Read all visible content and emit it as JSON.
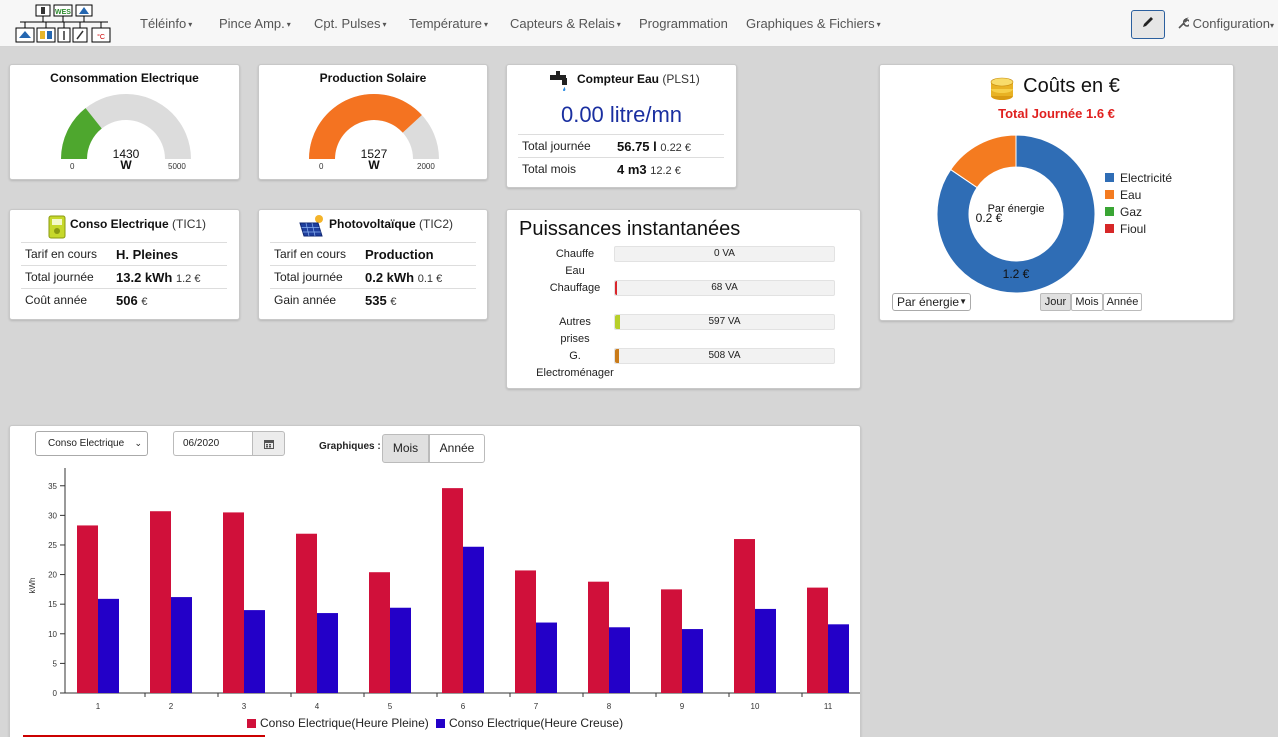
{
  "nav": {
    "logo_text": "WES",
    "logo_temp": "°C",
    "menu": [
      "Téléinfo",
      "Pince Amp.",
      "Cpt. Pulses",
      "Température",
      "Capteurs & Relais",
      "Programmation",
      "Graphiques & Fichiers"
    ],
    "menu_has_caret": [
      true,
      true,
      true,
      true,
      true,
      false,
      true
    ],
    "config": "Configuration"
  },
  "consumption_gauge": {
    "title": "Consommation Electrique",
    "value": "1430",
    "unit": "W",
    "min": "0",
    "max": "5000",
    "fraction": 0.286,
    "color": "#4ea72e"
  },
  "solar_gauge": {
    "title": "Production Solaire",
    "value": "1527",
    "unit": "W",
    "min": "0",
    "max": "2000",
    "fraction": 0.7635,
    "color": "#f47321"
  },
  "water": {
    "title": "Compteur Eau",
    "subtitle": "(PLS1)",
    "flow": "0.00 litre/mn",
    "rows": [
      {
        "label": "Total journée",
        "value": "56.75 l",
        "sub": "0.22 €"
      },
      {
        "label": "Total mois",
        "value": "4 m3",
        "sub": "12.2 €"
      }
    ]
  },
  "tic1": {
    "title": "Conso Electrique",
    "subtitle": "(TIC1)",
    "rows": [
      {
        "label": "Tarif en cours",
        "value": "H. Pleines",
        "sub": ""
      },
      {
        "label": "Total journée",
        "value": "13.2 kWh",
        "sub": "1.2 €"
      },
      {
        "label": "Coût année",
        "value": "506",
        "sub": "€"
      }
    ]
  },
  "tic2": {
    "title": "Photovoltaïque",
    "subtitle": "(TIC2)",
    "rows": [
      {
        "label": "Tarif en cours",
        "value": "Production",
        "sub": ""
      },
      {
        "label": "Total journée",
        "value": "0.2 kWh",
        "sub": "0.1 €"
      },
      {
        "label": "Gain année",
        "value": "535",
        "sub": "€"
      }
    ]
  },
  "power": {
    "title": "Puissances instantanées",
    "items": [
      {
        "label": "Chauffe Eau",
        "value": "0 VA",
        "fraction": 0.0,
        "color": "#c9c9c9"
      },
      {
        "label": "Chauffage",
        "value": "68 VA",
        "fraction": 0.004,
        "color": "#d9252b"
      },
      {
        "label": "Autres prises",
        "value": "597 VA",
        "fraction": 0.025,
        "color": "#b7cf2a"
      },
      {
        "label": "G. Electroménager",
        "value": "508 VA",
        "fraction": 0.02,
        "color": "#c97b1a"
      }
    ]
  },
  "costs": {
    "title": "Coûts en €",
    "total": "Total Journée 1.6 €",
    "center_label": "Par énergie",
    "slices": [
      {
        "name": "Electricité",
        "value": 1.2,
        "label": "1.2 €",
        "color": "#2f6db5"
      },
      {
        "name": "Eau",
        "value": 0.22,
        "label": "0.2 €",
        "color": "#f47b20"
      },
      {
        "name": "Gaz",
        "value": 0,
        "label": "",
        "color": "#3aa534"
      },
      {
        "name": "Fioul",
        "value": 0,
        "label": "",
        "color": "#d62728"
      }
    ],
    "select_value": "Par énergie",
    "period_buttons": [
      "Jour",
      "Mois",
      "Année"
    ],
    "active_period": "Jour"
  },
  "graph_controls": {
    "select_value": "Conso Electrique",
    "date_value": "06/2020",
    "label": "Graphiques :",
    "buttons": [
      "Mois",
      "Année"
    ],
    "active": "Mois"
  },
  "chart_data": {
    "type": "bar",
    "categories": [
      "1",
      "2",
      "3",
      "4",
      "5",
      "6",
      "7",
      "8",
      "9",
      "10",
      "11"
    ],
    "series": [
      {
        "name": "Conso Electrique(Heure Pleine)",
        "color": "#d0103a",
        "values": [
          28.3,
          30.7,
          30.5,
          26.9,
          20.4,
          34.6,
          20.7,
          18.8,
          17.5,
          26.0,
          17.8
        ]
      },
      {
        "name": "Conso Electrique(Heure Creuse)",
        "color": "#2300c8",
        "values": [
          15.9,
          16.2,
          14.0,
          13.5,
          14.4,
          24.7,
          11.9,
          11.1,
          10.8,
          14.2,
          11.6
        ]
      }
    ],
    "ylabel": "kWh",
    "yticks": [
      0,
      5,
      10,
      15,
      20,
      25,
      30,
      35
    ],
    "ylim": [
      0,
      38
    ],
    "legend": "bottom"
  }
}
